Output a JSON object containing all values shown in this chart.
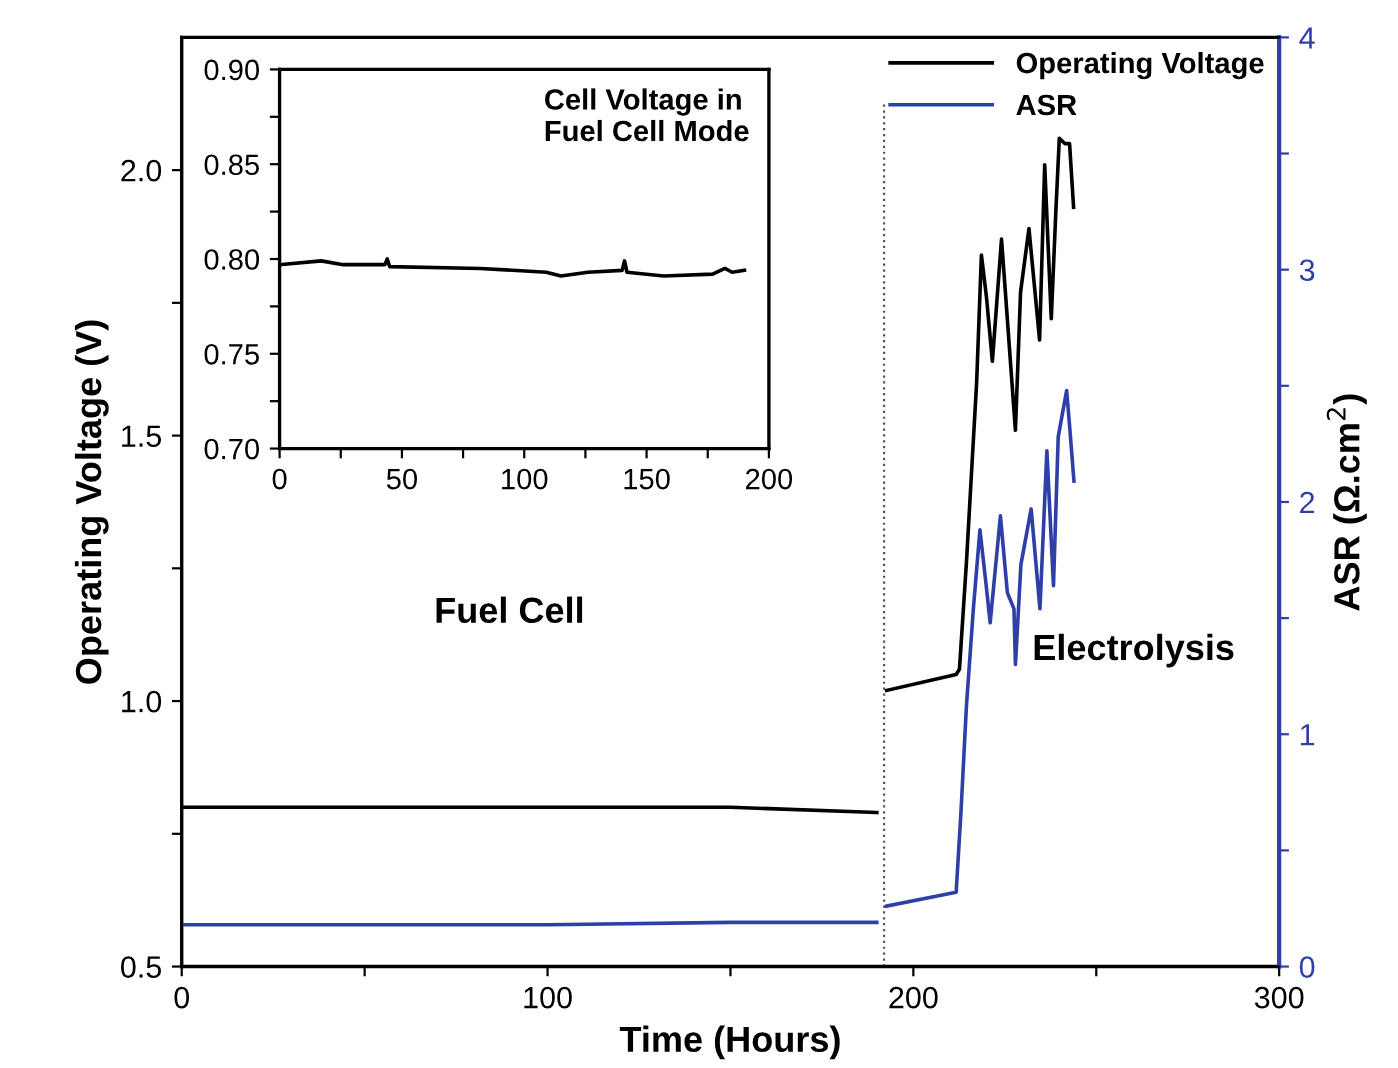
{
  "chart_data": [
    {
      "type": "line",
      "xlabel": "Time (Hours)",
      "ylabel": "Operating Voltage (V)",
      "y2label": "ASR (Ω.cm$^{2}$)",
      "xlim": [
        0,
        300
      ],
      "xticks": [
        0,
        {
          "value": 50,
          "label": null
        },
        100,
        {
          "value": 150,
          "label": null
        },
        200,
        {
          "value": 250,
          "label": null
        },
        300
      ],
      "ylim": [
        0.5,
        2.25
      ],
      "yticks": [
        0.5,
        {
          "value": 0.75,
          "label": null
        },
        {
          "value": 1.0,
          "label": "1.0"
        },
        {
          "value": 1.25,
          "label": null
        },
        1.5,
        {
          "value": 1.75,
          "label": null
        },
        {
          "value": 2.0,
          "label": "2.0"
        }
      ],
      "y2lim": [
        0,
        4
      ],
      "y2ticks": [
        0,
        {
          "value": 0.5,
          "label": null
        },
        1,
        {
          "value": 1.5,
          "label": null
        },
        2,
        {
          "value": 2.5,
          "label": null
        },
        3,
        {
          "value": 3.5,
          "label": null
        },
        4
      ],
      "legend": "top right",
      "grid": false,
      "line_style": "solid",
      "marker": "none",
      "annotations": [
        "Fuel Cell",
        "Electrolysis"
      ],
      "ref_lines": [
        {
          "axis": "x",
          "value": 192,
          "label": null,
          "color": "#555555",
          "line_style": "dotted"
        }
      ],
      "series": [
        {
          "name": "Operating Voltage",
          "color": "#000000",
          "x": [
            0,
            50,
            100,
            150,
            190,
            191,
            192.7,
            211.7,
            212.6,
            214.5,
            217.3,
            218.6,
            220,
            221.6,
            224.1,
            226,
            227.9,
            229.3,
            231.6,
            234.5,
            235.9,
            237.7,
            239,
            239.9,
            241.4,
            242.7,
            243.8
          ],
          "values": [
            0.8,
            0.8,
            0.8,
            0.8,
            0.79,
            null,
            1.02,
            1.05,
            1.06,
            1.26,
            1.6,
            1.84,
            1.76,
            1.64,
            1.87,
            1.69,
            1.51,
            1.77,
            1.89,
            1.68,
            2.01,
            1.72,
            1.93,
            2.06,
            2.05,
            2.05,
            1.93
          ]
        },
        {
          "name": "ASR",
          "color": "#2e3fa8",
          "axis": "y2",
          "x": [
            0,
            50,
            100,
            150,
            190,
            191,
            192.7,
            211.7,
            213.0,
            214.5,
            216.4,
            218.2,
            219.7,
            221.0,
            223.8,
            225.7,
            227.5,
            227.9,
            229.4,
            232.2,
            234.6,
            236.5,
            238.3,
            239.6,
            241.9,
            242.8,
            243.9
          ],
          "values": [
            0.18,
            0.18,
            0.18,
            0.19,
            0.19,
            null,
            0.26,
            0.32,
            0.66,
            1.12,
            1.54,
            1.88,
            1.67,
            1.48,
            1.94,
            1.61,
            1.54,
            1.3,
            1.73,
            1.97,
            1.54,
            2.22,
            1.64,
            2.28,
            2.48,
            2.31,
            2.09
          ]
        }
      ]
    },
    {
      "type": "line",
      "title": "Cell Voltage in\nFuel Cell Mode",
      "xlim": [
        0,
        200
      ],
      "xticks": [
        0,
        {
          "value": 25,
          "label": null
        },
        50,
        {
          "value": 75,
          "label": null
        },
        100,
        {
          "value": 125,
          "label": null
        },
        150,
        {
          "value": 175,
          "label": null
        },
        200
      ],
      "ylim": [
        0.7,
        0.9
      ],
      "yticks": [
        {
          "value": 0.7,
          "label": "0.70"
        },
        {
          "value": 0.725,
          "label": null
        },
        0.75,
        {
          "value": 0.775,
          "label": null
        },
        {
          "value": 0.8,
          "label": "0.80"
        },
        {
          "value": 0.825,
          "label": null
        },
        0.85,
        {
          "value": 0.875,
          "label": null
        },
        {
          "value": 0.9,
          "label": "0.90"
        }
      ],
      "grid": false,
      "legend": false,
      "line_style": "solid",
      "marker": "none",
      "series": [
        {
          "color": "#000000",
          "x": [
            0,
            17,
            26,
            43,
            44,
            45,
            82,
            109,
            115,
            126,
            140,
            141,
            142,
            157,
            177,
            182,
            185,
            190
          ],
          "values": [
            0.797,
            0.799,
            0.797,
            0.797,
            0.8,
            0.796,
            0.795,
            0.793,
            0.791,
            0.793,
            0.794,
            0.799,
            0.793,
            0.791,
            0.792,
            0.795,
            0.793,
            0.794
          ]
        }
      ]
    }
  ]
}
